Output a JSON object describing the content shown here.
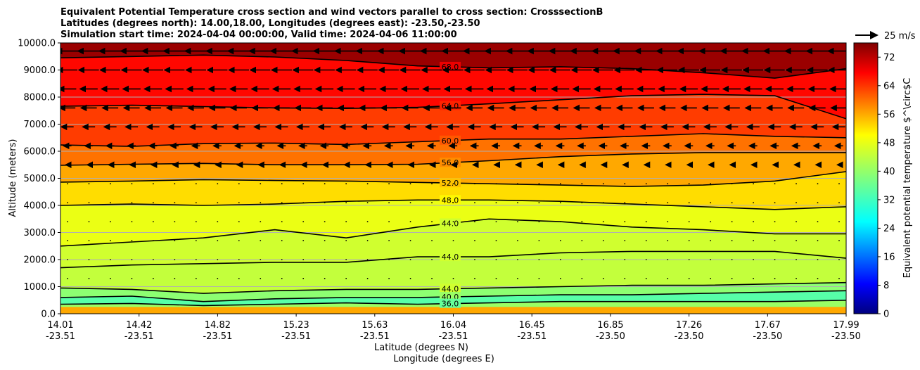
{
  "chart_data": {
    "type": "heatmap",
    "title_lines": [
      "Equivalent Potential Temperature cross section and wind vectors parallel to cross section: CrosssectionB",
      "Latitudes (degrees north): 14.00,18.00, Longitudes (degrees east): -23.50,-23.50",
      "Simulation start time: 2024-04-04 00:00:00, Valid time: 2024-04-06 11:00:00"
    ],
    "ylabel": "Altitude (meters)",
    "xlabel_lines": [
      "Latitude (degrees N)",
      "Longitude (degrees E)"
    ],
    "ylim": [
      0,
      10000
    ],
    "y_ticks": [
      "0.0",
      "1000.0",
      "2000.0",
      "3000.0",
      "4000.0",
      "5000.0",
      "6000.0",
      "7000.0",
      "8000.0",
      "9000.0",
      "10000.0"
    ],
    "x_ticks": [
      {
        "lat": "14.01",
        "lon": "-23.51"
      },
      {
        "lat": "14.42",
        "lon": "-23.51"
      },
      {
        "lat": "14.82",
        "lon": "-23.51"
      },
      {
        "lat": "15.23",
        "lon": "-23.51"
      },
      {
        "lat": "15.63",
        "lon": "-23.51"
      },
      {
        "lat": "16.04",
        "lon": "-23.51"
      },
      {
        "lat": "16.45",
        "lon": "-23.51"
      },
      {
        "lat": "16.85",
        "lon": "-23.50"
      },
      {
        "lat": "17.26",
        "lon": "-23.50"
      },
      {
        "lat": "17.67",
        "lon": "-23.50"
      },
      {
        "lat": "17.99",
        "lon": "-23.50"
      }
    ],
    "grid": "horizontal",
    "colorbar": {
      "label": "Equivalent potential temperature $^\\circ$C",
      "range": [
        0,
        76
      ],
      "ticks": [
        "0",
        "8",
        "16",
        "24",
        "32",
        "40",
        "48",
        "56",
        "64",
        "72"
      ],
      "colormap": "jet"
    },
    "quiver_key": {
      "label": "25 m/s"
    },
    "contour_levels": [
      {
        "value": 68,
        "label": "68.0",
        "altitudes": [
          9450,
          9500,
          9550,
          9480,
          9350,
          9150,
          9080,
          9120,
          9050,
          8900,
          8700,
          9050
        ]
      },
      {
        "value": 64,
        "label": "64.0",
        "altitudes": [
          7660,
          7700,
          7650,
          7600,
          7580,
          7620,
          7750,
          7900,
          8050,
          8100,
          8050,
          7200
        ]
      },
      {
        "value": 60,
        "label": "60.0",
        "altitudes": [
          6230,
          6180,
          6280,
          6300,
          6250,
          6350,
          6450,
          6450,
          6550,
          6650,
          6550,
          6500
        ]
      },
      {
        "value": 56,
        "label": "56.0",
        "altitudes": [
          5480,
          5520,
          5550,
          5500,
          5500,
          5520,
          5650,
          5800,
          5900,
          5950,
          5950,
          5950
        ]
      },
      {
        "value": 52,
        "label": "52.0",
        "altitudes": [
          4860,
          4900,
          4950,
          4920,
          4900,
          4850,
          4800,
          4750,
          4700,
          4750,
          4900,
          5250
        ]
      },
      {
        "value": 48,
        "label": "48.0",
        "altitudes": [
          4000,
          4050,
          4000,
          4050,
          4150,
          4200,
          4200,
          4150,
          4050,
          3950,
          3850,
          3950
        ]
      },
      {
        "value": 44,
        "label": "44.0",
        "altitudes": [
          2500,
          2650,
          2800,
          3100,
          2800,
          3200,
          3500,
          3400,
          3200,
          3100,
          2950,
          2950
        ]
      },
      {
        "value": 44,
        "label": "44.0",
        "altitudes": [
          1700,
          1800,
          1850,
          1900,
          1900,
          2100,
          2100,
          2250,
          2300,
          2300,
          2300,
          2050
        ]
      },
      {
        "value": 44,
        "label": "44.0",
        "altitudes": [
          950,
          900,
          750,
          850,
          900,
          900,
          950,
          1000,
          1050,
          1050,
          1100,
          1150
        ]
      },
      {
        "value": 40,
        "label": "40.0",
        "altitudes": [
          600,
          650,
          450,
          550,
          600,
          600,
          650,
          700,
          700,
          750,
          800,
          850
        ]
      },
      {
        "value": 36,
        "label": "36.0",
        "altitudes": [
          350,
          380,
          300,
          350,
          400,
          350,
          400,
          450,
          450,
          450,
          450,
          500
        ]
      }
    ],
    "wind_u_ms": [
      -25,
      -23,
      -20,
      -18,
      -14,
      -9,
      -4,
      -2,
      -1,
      1,
      2,
      2,
      1
    ]
  }
}
